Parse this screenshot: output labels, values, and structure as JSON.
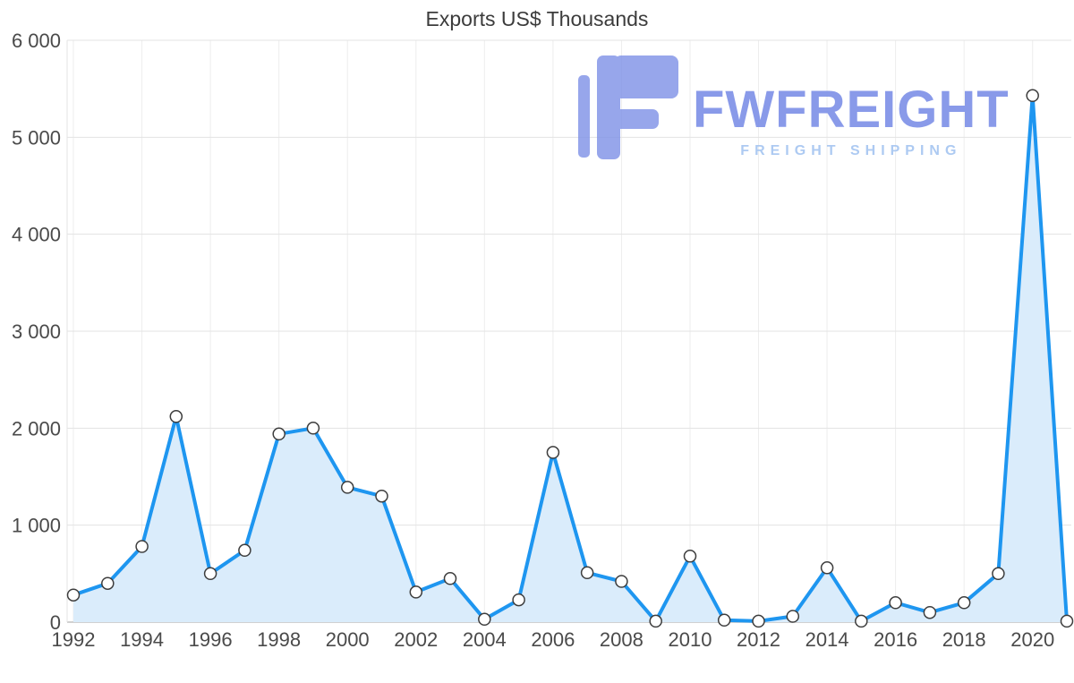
{
  "title": "Exports US$ Thousands",
  "watermark": {
    "brand": "FWFREIGHT",
    "tagline": "FREIGHT SHIPPING"
  },
  "colors": {
    "line": "#1e96f0",
    "area": "#daecfb",
    "marker_fill": "#ffffff",
    "marker_stroke": "#3d3d3d",
    "grid": "#e3e3e3",
    "grid_vertical": "#ededed",
    "axis": "#c2c2c2",
    "tick_text": "#4a4a4a",
    "title_text": "#3c3c3c",
    "watermark_main": "#7f92e8",
    "watermark_tagline": "#a7c6f1"
  },
  "chart_data": {
    "type": "area",
    "title": "Exports US$ Thousands",
    "xlabel": "",
    "ylabel": "",
    "x": [
      1992,
      1993,
      1994,
      1995,
      1996,
      1997,
      1998,
      1999,
      2000,
      2001,
      2002,
      2003,
      2004,
      2005,
      2006,
      2007,
      2008,
      2009,
      2010,
      2011,
      2012,
      2013,
      2014,
      2015,
      2016,
      2017,
      2018,
      2019,
      2020,
      2021
    ],
    "values": [
      280,
      400,
      780,
      2120,
      500,
      740,
      1940,
      2000,
      1390,
      1300,
      310,
      450,
      30,
      230,
      1750,
      510,
      420,
      10,
      680,
      20,
      10,
      60,
      560,
      10,
      200,
      100,
      200,
      500,
      5430,
      10
    ],
    "ylim": [
      0,
      6000
    ],
    "ytick_step": 1000,
    "xtick_years": [
      1992,
      1994,
      1996,
      1998,
      2000,
      2002,
      2004,
      2006,
      2008,
      2010,
      2012,
      2014,
      2016,
      2018,
      2020
    ],
    "grid": true,
    "legend": "none",
    "markers": true
  }
}
